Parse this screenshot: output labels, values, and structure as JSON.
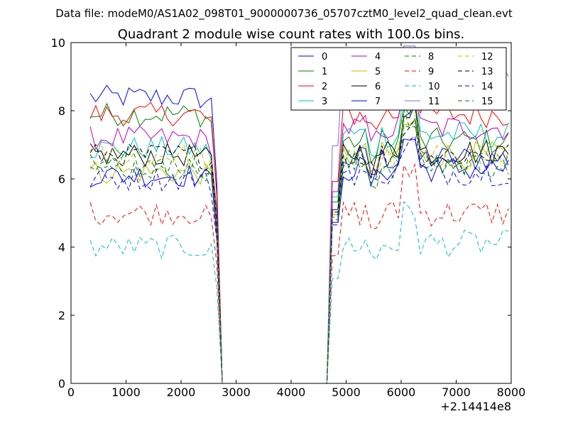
{
  "figure": {
    "supertitle": "Data file: modeM0/AS1A02_098T01_9000000736_05707cztM0_level2_quad_clean.evt"
  },
  "chart_data": {
    "type": "line",
    "title": "Quadrant 2 module wise count rates with 100.0s bins.",
    "xlabel": "",
    "ylabel": "",
    "x_offset_label": "+2.14414e8",
    "xlim": [
      0,
      8000
    ],
    "ylim": [
      0,
      10
    ],
    "x_ticks": [
      0,
      1000,
      2000,
      3000,
      4000,
      5000,
      6000,
      7000,
      8000
    ],
    "y_ticks": [
      0,
      2,
      4,
      6,
      8,
      10
    ],
    "x_tick_labels": [
      "0",
      "1000",
      "2000",
      "3000",
      "4000",
      "5000",
      "6000",
      "7000",
      "8000"
    ],
    "y_tick_labels": [
      "0",
      "2",
      "4",
      "6",
      "8",
      "10"
    ],
    "grid": false,
    "legend": {
      "location": "top-right",
      "columns": 4
    },
    "gap": {
      "start": 2750,
      "end": 4720
    },
    "x_start": 350,
    "x_end": 7950,
    "bin": 100,
    "series": [
      {
        "name": "0",
        "color": "#0000ff",
        "style": "solid",
        "level1": 8.4,
        "level2": 6.6
      },
      {
        "name": "1",
        "color": "#008000",
        "style": "solid",
        "level1": 7.9,
        "level2": 7.1
      },
      {
        "name": "2",
        "color": "#ff0000",
        "style": "solid",
        "level1": 7.9,
        "level2": 7.9
      },
      {
        "name": "3",
        "color": "#00bfbf",
        "style": "solid",
        "level1": 6.9,
        "level2": 7.3
      },
      {
        "name": "4",
        "color": "#bf00bf",
        "style": "solid",
        "level1": 7.2,
        "level2": 7.5
      },
      {
        "name": "5",
        "color": "#bfbf00",
        "style": "solid",
        "level1": 6.2,
        "level2": 6.7
      },
      {
        "name": "6",
        "color": "#000000",
        "style": "solid",
        "level1": 6.7,
        "level2": 6.8
      },
      {
        "name": "7",
        "color": "#0000ff",
        "style": "solid",
        "level1": 6.1,
        "level2": 6.3
      },
      {
        "name": "8",
        "color": "#008000",
        "style": "dashed",
        "level1": 6.4,
        "level2": 6.5
      },
      {
        "name": "9",
        "color": "#ff0000",
        "style": "dashed",
        "level1": 5.0,
        "level2": 5.0
      },
      {
        "name": "10",
        "color": "#00bfbf",
        "style": "dashed",
        "level1": 4.0,
        "level2": 4.1
      },
      {
        "name": "11",
        "color": "#7070ff",
        "style": "solid",
        "level1": 0,
        "level2": 9.3,
        "only_second": true
      },
      {
        "name": "12",
        "color": "#bfbf00",
        "style": "dashed",
        "level1": 6.7,
        "level2": 6.6
      },
      {
        "name": "13",
        "color": "#000000",
        "style": "dashed",
        "level1": 6.7,
        "level2": 6.7
      },
      {
        "name": "14",
        "color": "#0000ff",
        "style": "dashed",
        "level1": 6.0,
        "level2": 6.2
      },
      {
        "name": "15",
        "color": "#008000",
        "style": "dashed",
        "level1": 6.3,
        "level2": 6.4
      }
    ]
  }
}
